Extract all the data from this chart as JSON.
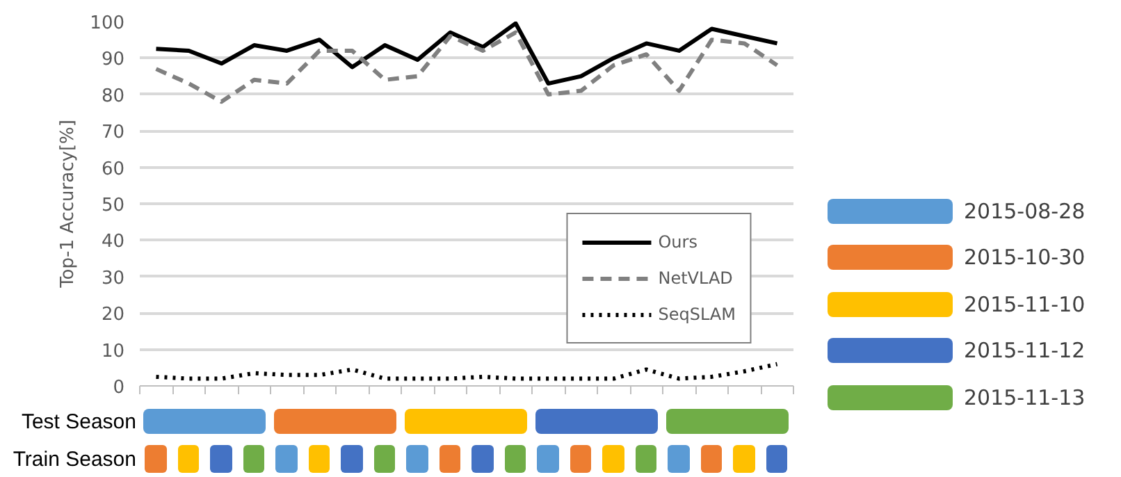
{
  "chart_data": [
    {
      "type": "line",
      "ylabel": "Top-1 Accuracy[%]",
      "categories": [
        null,
        null,
        null,
        null,
        null,
        null,
        null,
        null,
        null,
        null,
        null,
        null,
        null,
        null,
        null,
        null,
        null,
        null,
        null,
        null
      ],
      "series": [
        {
          "name": "Ours",
          "color": "#000000",
          "line_style": "solid",
          "values": [
            92.5,
            92,
            88.5,
            93.5,
            92,
            95,
            87.5,
            93.5,
            89.5,
            97,
            93,
            99.5,
            83,
            85,
            90,
            94,
            92,
            98,
            96,
            94
          ]
        },
        {
          "name": "NetVLAD",
          "color": "#808080",
          "line_style": "dashed",
          "values": [
            87,
            83,
            78,
            84,
            83,
            92,
            92,
            84,
            85,
            96,
            92,
            97,
            80,
            81,
            88,
            91,
            81,
            95,
            94,
            88
          ]
        },
        {
          "name": "SeqSLAM",
          "color": "#000000",
          "line_style": "dotted",
          "values": [
            2.5,
            2,
            2,
            3.5,
            3,
            3,
            4.5,
            2,
            2,
            2,
            2.5,
            2,
            2,
            2,
            2,
            4.5,
            2,
            2.5,
            4,
            6
          ]
        }
      ],
      "ylim": [
        0,
        100
      ],
      "yticks": [
        0,
        10,
        20,
        30,
        40,
        50,
        60,
        70,
        80,
        90,
        100
      ],
      "grid": "y",
      "legend": "bottom right",
      "tick_labels": "y",
      "marker": "none"
    },
    {
      "type": "other",
      "categories": [
        "2015-08-28",
        "2015-10-30",
        "2015-11-10",
        "2015-11-12",
        "2015-11-13"
      ],
      "colors": [
        "#5b9bd5",
        "#ed7d31",
        "#ffc000",
        "#4472c4",
        "#70ad47"
      ],
      "annotations": [
        "Test Season",
        "Train Season"
      ]
    }
  ]
}
